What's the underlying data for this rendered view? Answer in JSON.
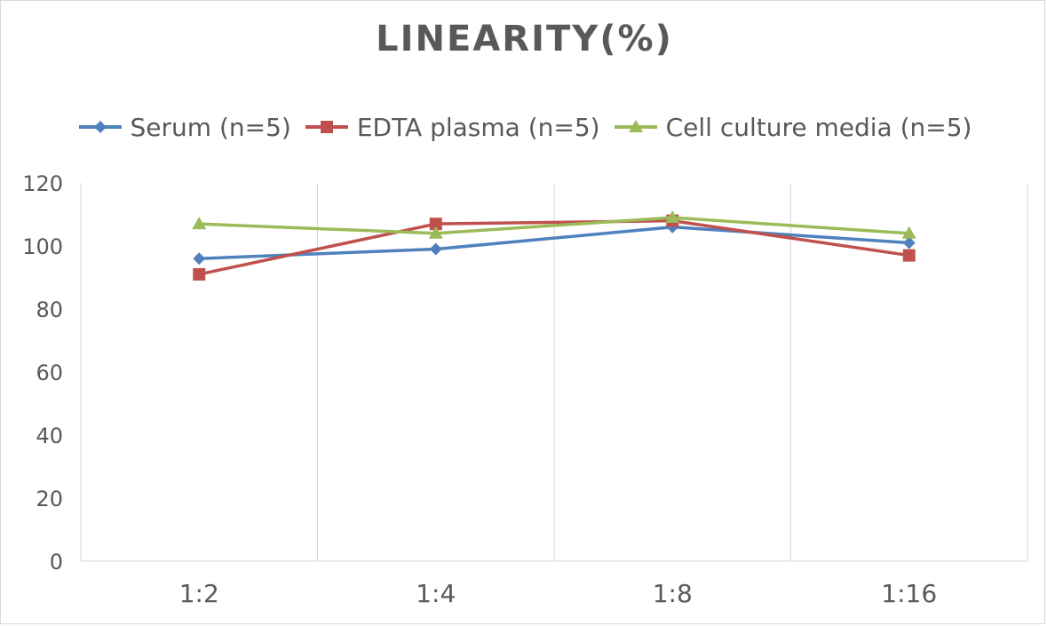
{
  "chart_data": {
    "type": "line",
    "title": "LINEARITY(%)",
    "categories": [
      "1:2",
      "1:4",
      "1:8",
      "1:16"
    ],
    "ylim": [
      0,
      120
    ],
    "yticks": [
      0,
      20,
      40,
      60,
      80,
      100,
      120
    ],
    "grid": "vertical",
    "legend_position": "top",
    "series": [
      {
        "name": "Serum (n=5)",
        "color": "#4f81bd",
        "marker": "diamond",
        "values": [
          96,
          99,
          106,
          101
        ]
      },
      {
        "name": "EDTA plasma (n=5)",
        "color": "#c0504d",
        "marker": "square",
        "values": [
          91,
          107,
          108,
          97
        ]
      },
      {
        "name": "Cell culture media (n=5)",
        "color": "#9bbb59",
        "marker": "triangle",
        "values": [
          107,
          104,
          109,
          104
        ]
      }
    ]
  }
}
